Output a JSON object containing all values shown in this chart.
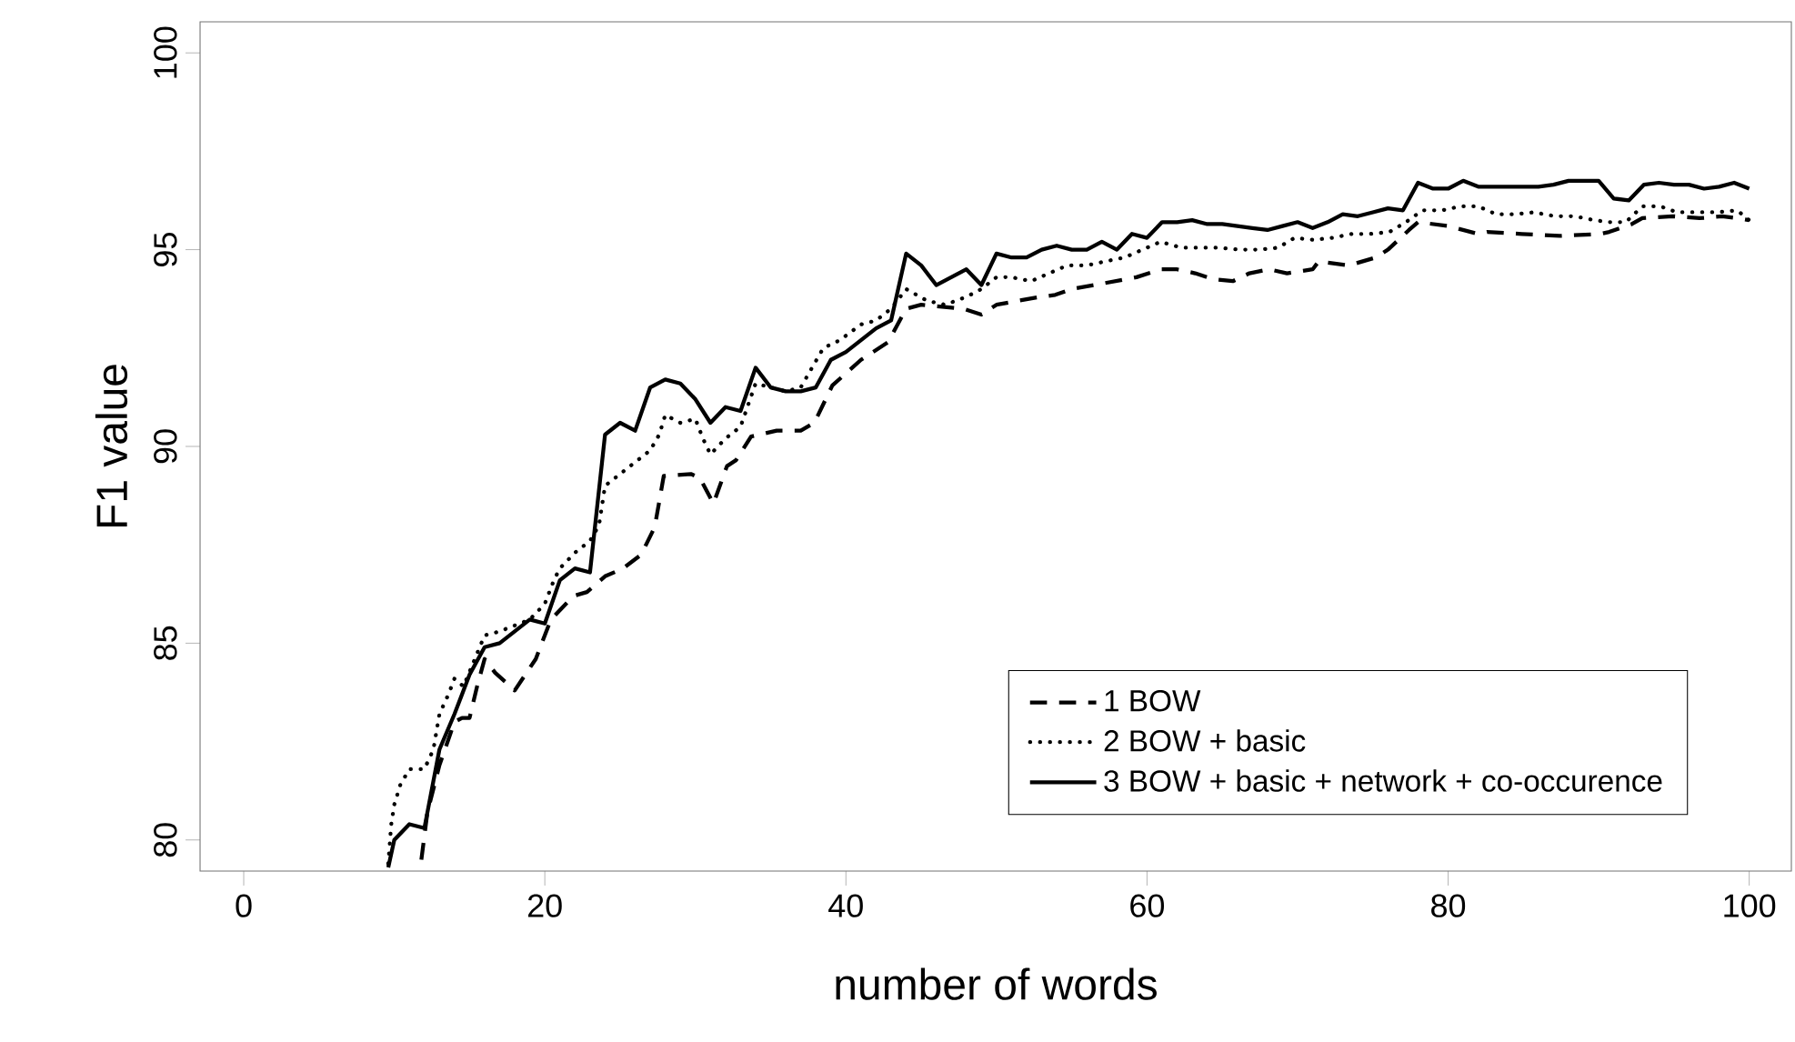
{
  "chart_data": {
    "type": "line",
    "xlabel": "number of words",
    "ylabel": "F1 value",
    "xlim": [
      -2.9,
      102.8
    ],
    "ylim": [
      79.21,
      100.79
    ],
    "xticks": [
      0,
      20,
      40,
      60,
      80,
      100
    ],
    "yticks": [
      80,
      85,
      90,
      95,
      100
    ],
    "legend": "bottom right",
    "marker": "none",
    "series": [
      {
        "name": "1 BOW",
        "color": "#000000",
        "line_style": "dashed",
        "x": [
          11.8,
          12.2,
          13,
          14,
          14.5,
          15,
          15.5,
          16,
          16.7,
          18,
          19.4,
          20.4,
          21.9,
          22.8,
          24,
          25.2,
          26.4,
          27.3,
          27.9,
          29.7,
          30.3,
          31.2,
          32.1,
          32.7,
          33.7,
          35.4,
          37,
          37.9,
          39.1,
          41,
          42.8,
          44,
          45,
          46.4,
          47.8,
          49,
          50,
          51.4,
          52.9,
          53.9,
          55,
          56.5,
          57.9,
          59.3,
          60.9,
          62,
          63.2,
          64.4,
          65.7,
          66.8,
          68.1,
          69.3,
          71,
          71.4,
          73.4,
          75.2,
          76,
          77.4,
          78,
          80,
          82,
          82.6,
          84.9,
          87.4,
          90.1,
          90.7,
          92.2,
          92.9,
          94.9,
          96.7,
          98.2,
          99.2,
          100
        ],
        "values": [
          79.5,
          80.7,
          81.9,
          83.0,
          83.1,
          83.1,
          83.9,
          84.6,
          84.25,
          83.8,
          84.6,
          85.6,
          86.2,
          86.3,
          86.7,
          86.9,
          87.25,
          87.95,
          89.25,
          89.3,
          89.2,
          88.55,
          89.5,
          89.65,
          90.25,
          90.4,
          90.4,
          90.6,
          91.55,
          92.2,
          92.65,
          93.5,
          93.6,
          93.55,
          93.5,
          93.35,
          93.6,
          93.7,
          93.8,
          93.85,
          94.0,
          94.1,
          94.2,
          94.3,
          94.5,
          94.5,
          94.4,
          94.25,
          94.2,
          94.4,
          94.5,
          94.4,
          94.5,
          94.7,
          94.6,
          94.8,
          95.0,
          95.5,
          95.7,
          95.6,
          95.4,
          95.45,
          95.4,
          95.35,
          95.4,
          95.45,
          95.65,
          95.8,
          95.85,
          95.8,
          95.85,
          95.8,
          95.75
        ]
      },
      {
        "name": "2 BOW + basic",
        "color": "#000000",
        "line_style": "dotted",
        "x": [
          9.6,
          9.8,
          10,
          10.4,
          11,
          12,
          12.6,
          13,
          13.6,
          14,
          14.6,
          16,
          17,
          19,
          20,
          20.6,
          21,
          22,
          23,
          23.6,
          24,
          25,
          26,
          27,
          27.6,
          28,
          29,
          30,
          30.5,
          31,
          32,
          33,
          34,
          35,
          36,
          37,
          38.5,
          39.6,
          41,
          42,
          43,
          44,
          45.4,
          46.6,
          48,
          49,
          50,
          51,
          52.3,
          53.5,
          54.7,
          56,
          57.2,
          58.5,
          59.7,
          60.9,
          62.3,
          63.5,
          64.7,
          66.2,
          67.4,
          68.7,
          69.8,
          71,
          72.3,
          73.6,
          74.8,
          76.1,
          77.2,
          78.3,
          79.6,
          80.8,
          82,
          83.2,
          84.4,
          85.7,
          87.1,
          88.4,
          89.7,
          90.7,
          91.8,
          92.9,
          94.1,
          95.2,
          96.5,
          97.9,
          99.2,
          100
        ],
        "values": [
          79.4,
          80.4,
          80.9,
          81.4,
          81.8,
          81.8,
          82.3,
          83.2,
          83.7,
          84.1,
          83.9,
          85.2,
          85.3,
          85.6,
          86.0,
          86.6,
          86.9,
          87.3,
          87.6,
          88.0,
          89.0,
          89.3,
          89.6,
          89.9,
          90.3,
          90.8,
          90.6,
          90.7,
          90.2,
          89.8,
          90.2,
          90.5,
          91.6,
          91.5,
          91.4,
          91.5,
          92.5,
          92.7,
          93.1,
          93.2,
          93.5,
          94.0,
          93.7,
          93.6,
          93.8,
          94.0,
          94.3,
          94.3,
          94.2,
          94.4,
          94.6,
          94.6,
          94.7,
          94.8,
          95.0,
          95.2,
          95.05,
          95.05,
          95.05,
          95.0,
          95.0,
          95.05,
          95.3,
          95.25,
          95.3,
          95.4,
          95.4,
          95.45,
          95.7,
          96.0,
          96.0,
          96.1,
          96.1,
          95.9,
          95.9,
          95.95,
          95.85,
          95.85,
          95.75,
          95.7,
          95.7,
          96.1,
          96.1,
          95.95,
          95.95,
          95.95,
          96.0,
          95.75
        ]
      },
      {
        "name": "3 BOW + basic + network + co-occurence",
        "color": "#000000",
        "line_style": "solid",
        "x": [
          9.6,
          10,
          11,
          12,
          13,
          14,
          15,
          16,
          17,
          18,
          19,
          20,
          21,
          22,
          23,
          24,
          25,
          26,
          27,
          28,
          29,
          30,
          31,
          32,
          33,
          34,
          35,
          36,
          37,
          38,
          39,
          40,
          41,
          42,
          43,
          44,
          45,
          46,
          47,
          48,
          49,
          50,
          51,
          52,
          53,
          54,
          55,
          56,
          57,
          58,
          59,
          60,
          61,
          62,
          63,
          64,
          65,
          66,
          67,
          68,
          69,
          70,
          71,
          72,
          73,
          74,
          75,
          76,
          77,
          78,
          79,
          80,
          81,
          82,
          83,
          84,
          85,
          86,
          87,
          88,
          89,
          90,
          91,
          92,
          93,
          94,
          95,
          96,
          97,
          98,
          99,
          100
        ],
        "values": [
          79.3,
          80.0,
          80.4,
          80.3,
          82.3,
          83.2,
          84.2,
          84.9,
          85.0,
          85.3,
          85.6,
          85.5,
          86.6,
          86.9,
          86.8,
          90.3,
          90.6,
          90.4,
          91.5,
          91.7,
          91.6,
          91.2,
          90.6,
          91.0,
          90.9,
          92.0,
          91.5,
          91.4,
          91.4,
          91.5,
          92.2,
          92.4,
          92.7,
          93.0,
          93.2,
          94.9,
          94.6,
          94.1,
          94.3,
          94.5,
          94.1,
          94.9,
          94.8,
          94.8,
          95.0,
          95.1,
          95.0,
          95.0,
          95.2,
          95.0,
          95.4,
          95.3,
          95.7,
          95.7,
          95.75,
          95.65,
          95.65,
          95.6,
          95.55,
          95.5,
          95.6,
          95.7,
          95.55,
          95.7,
          95.9,
          95.85,
          95.95,
          96.05,
          96.0,
          96.7,
          96.55,
          96.55,
          96.75,
          96.6,
          96.6,
          96.6,
          96.6,
          96.6,
          96.65,
          96.75,
          96.75,
          96.75,
          96.3,
          96.25,
          96.65,
          96.7,
          96.65,
          96.65,
          96.55,
          96.6,
          96.7,
          96.55
        ]
      }
    ]
  }
}
